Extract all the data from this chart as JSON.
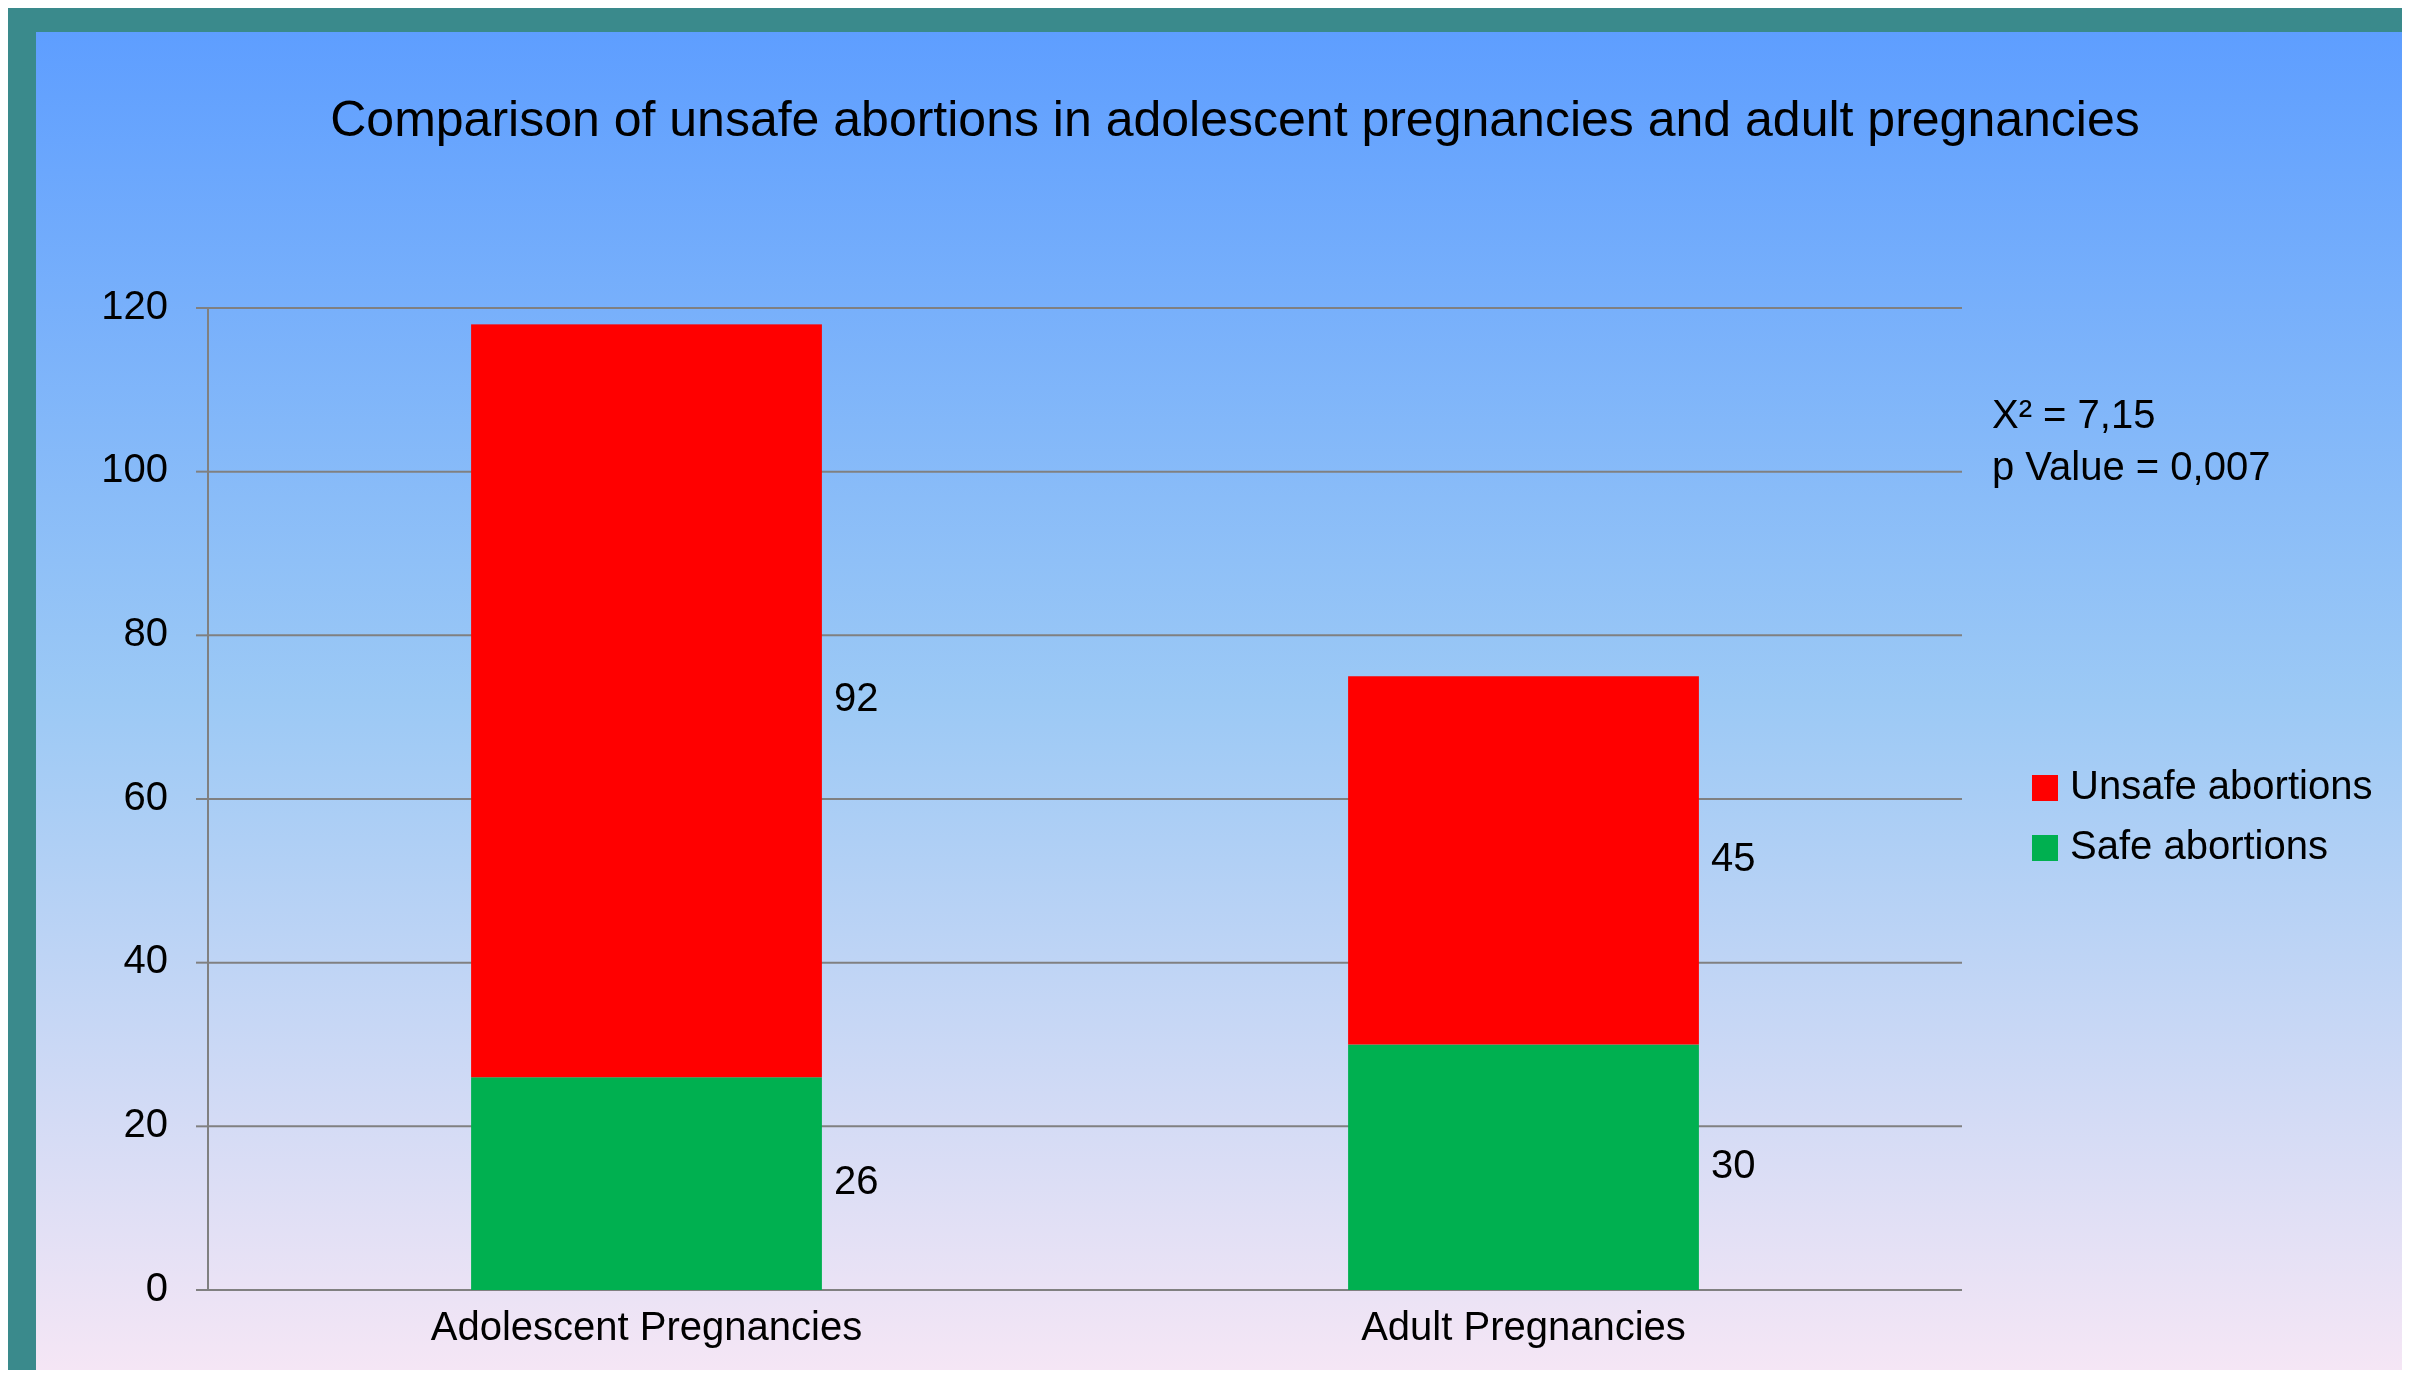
{
  "chart_data": {
    "type": "bar",
    "title": "Comparison of unsafe abortions in adolescent pregnancies and adult pregnancies",
    "categories": [
      "Adolescent Pregnancies",
      "Adult Pregnancies"
    ],
    "stacked": true,
    "series": [
      {
        "name": "Safe abortions",
        "color": "#00b050",
        "values": [
          26,
          30
        ]
      },
      {
        "name": "Unsafe abortions",
        "color": "#ff0000",
        "values": [
          92,
          45
        ]
      }
    ],
    "ylim": [
      0,
      120
    ],
    "yticks": [
      0,
      20,
      40,
      60,
      80,
      100,
      120
    ],
    "grid": "y",
    "legend": "right",
    "data_labels": true,
    "annotations": [
      "X² = 7,15",
      "p Value = 0,007"
    ]
  }
}
